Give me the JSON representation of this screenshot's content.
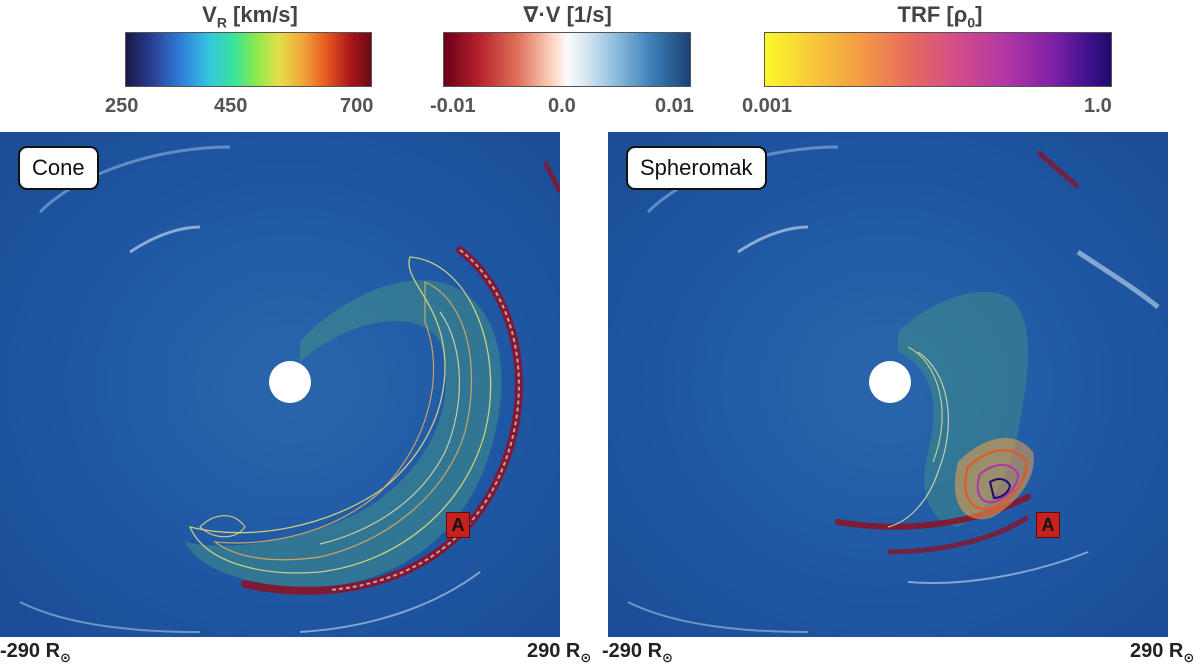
{
  "colorbars": {
    "vr": {
      "title": "V",
      "title_sub": "R",
      "title_rest": " [km/s]",
      "ticks": [
        "250",
        "450",
        "700"
      ]
    },
    "div": {
      "title": "∇·V [1/s]",
      "ticks": [
        "-0.01",
        "0.0",
        "0.01"
      ]
    },
    "trf": {
      "title": "TRF [ρ",
      "title_sub": "0",
      "title_rest": "]",
      "ticks": [
        "0.001",
        "1.0"
      ]
    }
  },
  "panels": {
    "cone": {
      "label": "Cone",
      "marker": "A"
    },
    "spheromak": {
      "label": "Spheromak",
      "marker": "A"
    }
  },
  "axis_range": {
    "left_value": "-290 R",
    "right_value": "290 R",
    "unit_sub": "⊙"
  },
  "colors": {
    "background_field": "#1f56a4",
    "shock_red": "#8a1428",
    "marker": "#c8201c"
  }
}
